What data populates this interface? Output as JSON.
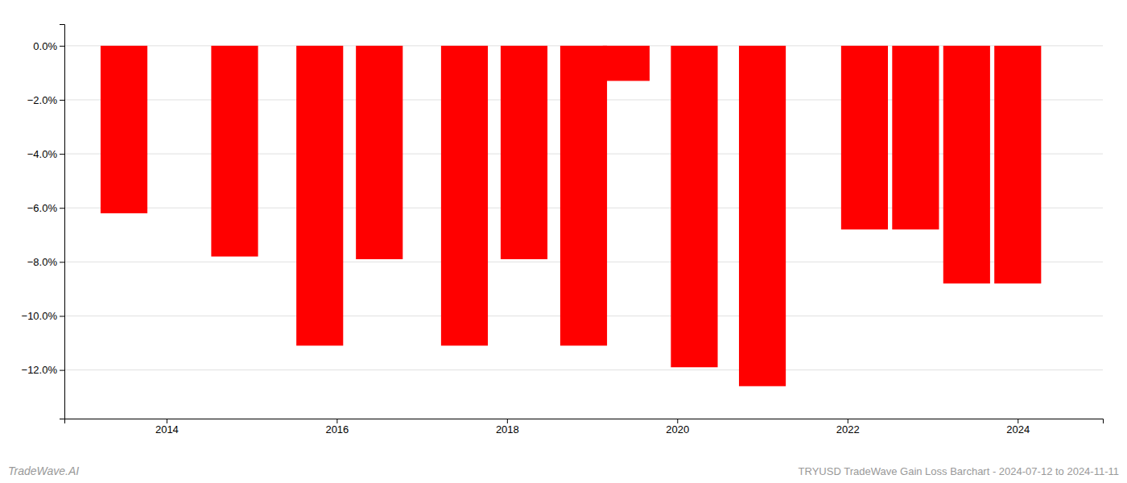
{
  "chart_data": {
    "type": "bar",
    "x": [
      2013.5,
      2014.8,
      2015.8,
      2016.5,
      2017.5,
      2018.2,
      2018.9,
      2019.4,
      2020.2,
      2021.0,
      2022.2,
      2022.8,
      2023.4,
      2024.0
    ],
    "values": [
      -6.2,
      -7.8,
      -11.1,
      -7.9,
      -11.1,
      -7.9,
      -11.1,
      -1.3,
      -11.9,
      -12.6,
      -6.8,
      -6.8,
      -8.8,
      -8.8
    ],
    "color": "#ff0000",
    "xlim": [
      2012.8,
      2025.0
    ],
    "xticks": [
      2014,
      2016,
      2018,
      2020,
      2022,
      2024
    ],
    "ylim": [
      -13.8,
      0.8
    ],
    "yticks": [
      {
        "value": 0.0,
        "label": "0.0%"
      },
      {
        "value": -2.0,
        "label": "−2.0%"
      },
      {
        "value": -4.0,
        "label": "−4.0%"
      },
      {
        "value": -6.0,
        "label": "−6.0%"
      },
      {
        "value": -8.0,
        "label": "−8.0%"
      },
      {
        "value": -10.0,
        "label": "−10.0%"
      },
      {
        "value": -12.0,
        "label": "−12.0%"
      }
    ],
    "grid": true,
    "annotations": [
      "TradeWave.AI",
      "TRYUSD TradeWave Gain Loss Barchart - 2024-07-12 to 2024-11-11"
    ]
  }
}
